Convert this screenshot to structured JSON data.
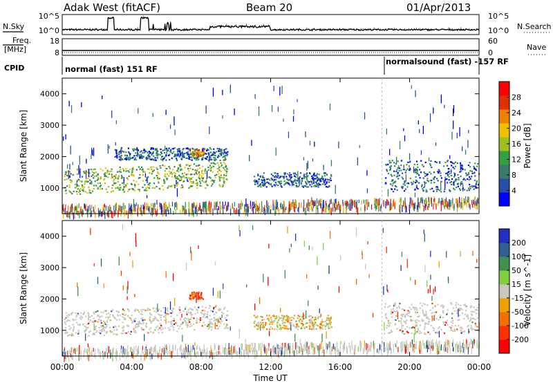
{
  "header": {
    "station": "Adak West (fitACF)",
    "beam": "Beam 20",
    "date": "01/Apr/2013"
  },
  "top_panels": {
    "nsky_label": "N.Sky",
    "nsky_ticks": [
      "10^5",
      "10^0"
    ],
    "nsearch_label": "N.Search",
    "nsearch_ticks": [
      "10^5",
      "10^0"
    ],
    "freq_label_1": "Freq.",
    "freq_label_2": "[MHz]",
    "freq_ticks": [
      "18",
      "8"
    ],
    "nave_label": "Nave",
    "nave_ticks": [
      "60",
      "0"
    ],
    "cpid_label": "CPID",
    "cpid_modes": [
      {
        "label": "normal (fast) 151 RF",
        "start_hour": 0.8
      },
      {
        "label": "normalsound (fast) -157 RF",
        "start_hour": 18.4
      }
    ]
  },
  "x_axis": {
    "label": "Time UT",
    "ticks": [
      "00:00",
      "04:00",
      "08:00",
      "12:00",
      "16:00",
      "20:00",
      "00:00"
    ]
  },
  "panels": {
    "power": {
      "ylabel": "Slant Range [km]",
      "yticks": [
        "4000",
        "3000",
        "2000",
        "1000"
      ],
      "colorbar_label": "Power [dB]",
      "colorbar_ticks": [
        "28",
        "24",
        "20",
        "16",
        "12",
        "8",
        "4"
      ],
      "colors": [
        "#0000ff",
        "#2a4ea8",
        "#3a7a6e",
        "#30a040",
        "#a0c020",
        "#f0c000",
        "#f08000",
        "#e03000",
        "#ff0000"
      ]
    },
    "velocity": {
      "ylabel": "Slant Range [km]",
      "yticks": [
        "4000",
        "3000",
        "2000",
        "1000"
      ],
      "colorbar_label": "Velocity [m s^-1]",
      "colorbar_ticks": [
        "200",
        "100",
        "50",
        "15",
        "-15",
        "-50",
        "-100",
        "-200"
      ],
      "colors": [
        "#2030c0",
        "#306090",
        "#409050",
        "#80d040",
        "#c8c8c0",
        "#f0a000",
        "#f07000",
        "#ff3000",
        "#ff0000"
      ]
    }
  },
  "chart_data": [
    {
      "type": "heatmap",
      "title": "Beam 20",
      "xlabel": "Time UT",
      "ylabel": "Slant Range [km]",
      "x_range_hours": [
        0,
        24
      ],
      "y_range_km": [
        180,
        4500
      ],
      "z_label": "Power [dB]",
      "z_range": [
        0,
        32
      ],
      "echo_regions": [
        {
          "t_start": 0.1,
          "t_end": 9.5,
          "range_lo_km": 800,
          "range_hi_km": 1600,
          "typical_power_db": 16
        },
        {
          "t_start": 3.0,
          "t_end": 9.5,
          "range_lo_km": 1900,
          "range_hi_km": 2300,
          "typical_power_db": 8
        },
        {
          "t_start": 7.3,
          "t_end": 8.2,
          "range_lo_km": 2000,
          "range_hi_km": 2250,
          "typical_power_db": 24
        },
        {
          "t_start": 11.0,
          "t_end": 15.5,
          "range_lo_km": 1050,
          "range_hi_km": 1500,
          "typical_power_db": 8
        },
        {
          "t_start": 18.5,
          "t_end": 24.0,
          "range_lo_km": 900,
          "range_hi_km": 1900,
          "typical_power_db": 8
        },
        {
          "t_start": 0.0,
          "t_end": 24.0,
          "range_lo_km": 200,
          "range_hi_km": 500,
          "typical_power_db": 24
        }
      ]
    },
    {
      "type": "heatmap",
      "xlabel": "Time UT",
      "ylabel": "Slant Range [km]",
      "x_range_hours": [
        0,
        24
      ],
      "y_range_km": [
        180,
        4500
      ],
      "z_label": "Velocity [m s^-1]",
      "z_range": [
        -250,
        250
      ],
      "echo_regions": [
        {
          "t_start": 0.1,
          "t_end": 9.5,
          "range_lo_km": 800,
          "range_hi_km": 1600,
          "typical_velocity": 0
        },
        {
          "t_start": 7.3,
          "t_end": 8.2,
          "range_lo_km": 2000,
          "range_hi_km": 2250,
          "typical_velocity": -200
        },
        {
          "t_start": 11.0,
          "t_end": 15.5,
          "range_lo_km": 1050,
          "range_hi_km": 1500,
          "typical_velocity": -60
        },
        {
          "t_start": 18.5,
          "t_end": 24.0,
          "range_lo_km": 900,
          "range_hi_km": 1900,
          "typical_velocity": 0
        },
        {
          "t_start": 0.0,
          "t_end": 24.0,
          "range_lo_km": 200,
          "range_hi_km": 500,
          "typical_velocity": 0
        }
      ]
    }
  ]
}
